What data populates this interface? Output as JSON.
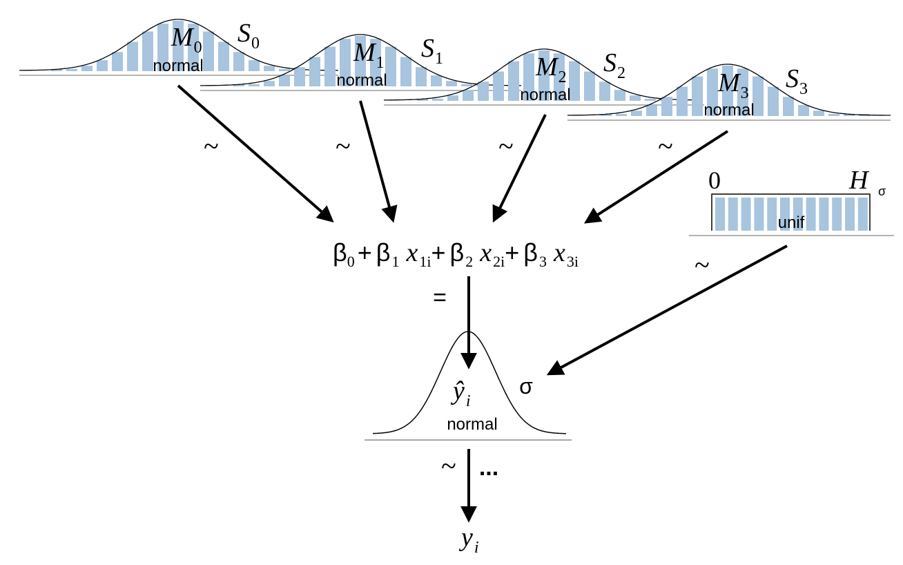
{
  "priors": [
    {
      "mean": "M",
      "scale": "S",
      "index": "0",
      "dist": "normal",
      "tilde": "~"
    },
    {
      "mean": "M",
      "scale": "S",
      "index": "1",
      "dist": "normal",
      "tilde": "~"
    },
    {
      "mean": "M",
      "scale": "S",
      "index": "2",
      "dist": "normal",
      "tilde": "~"
    },
    {
      "mean": "M",
      "scale": "S",
      "index": "3",
      "dist": "normal",
      "tilde": "~"
    }
  ],
  "sigma_prior": {
    "low": "0",
    "high": "H",
    "high_sub": "σ",
    "dist": "unif",
    "tilde": "~"
  },
  "equation": {
    "b0": "β",
    "b0_sub": "0",
    "plus": "+",
    "b1": "β",
    "b1_sub": "1",
    "x1": "x",
    "x1_sub": "1i",
    "b2": "β",
    "b2_sub": "2",
    "x2": "x",
    "x2_sub": "2i",
    "b3": "β",
    "b3_sub": "3",
    "x3": "x",
    "x3_sub": "3i",
    "equals": "="
  },
  "likelihood": {
    "mean": "ŷ",
    "mean_sub": "i",
    "sd": "σ",
    "dist": "normal",
    "tilde": "~",
    "ellipsis": "...",
    "data": "y",
    "data_sub": "i"
  },
  "colors": {
    "bar_fill": "#a8c4de",
    "line": "#000000",
    "baseline": "#888888"
  }
}
